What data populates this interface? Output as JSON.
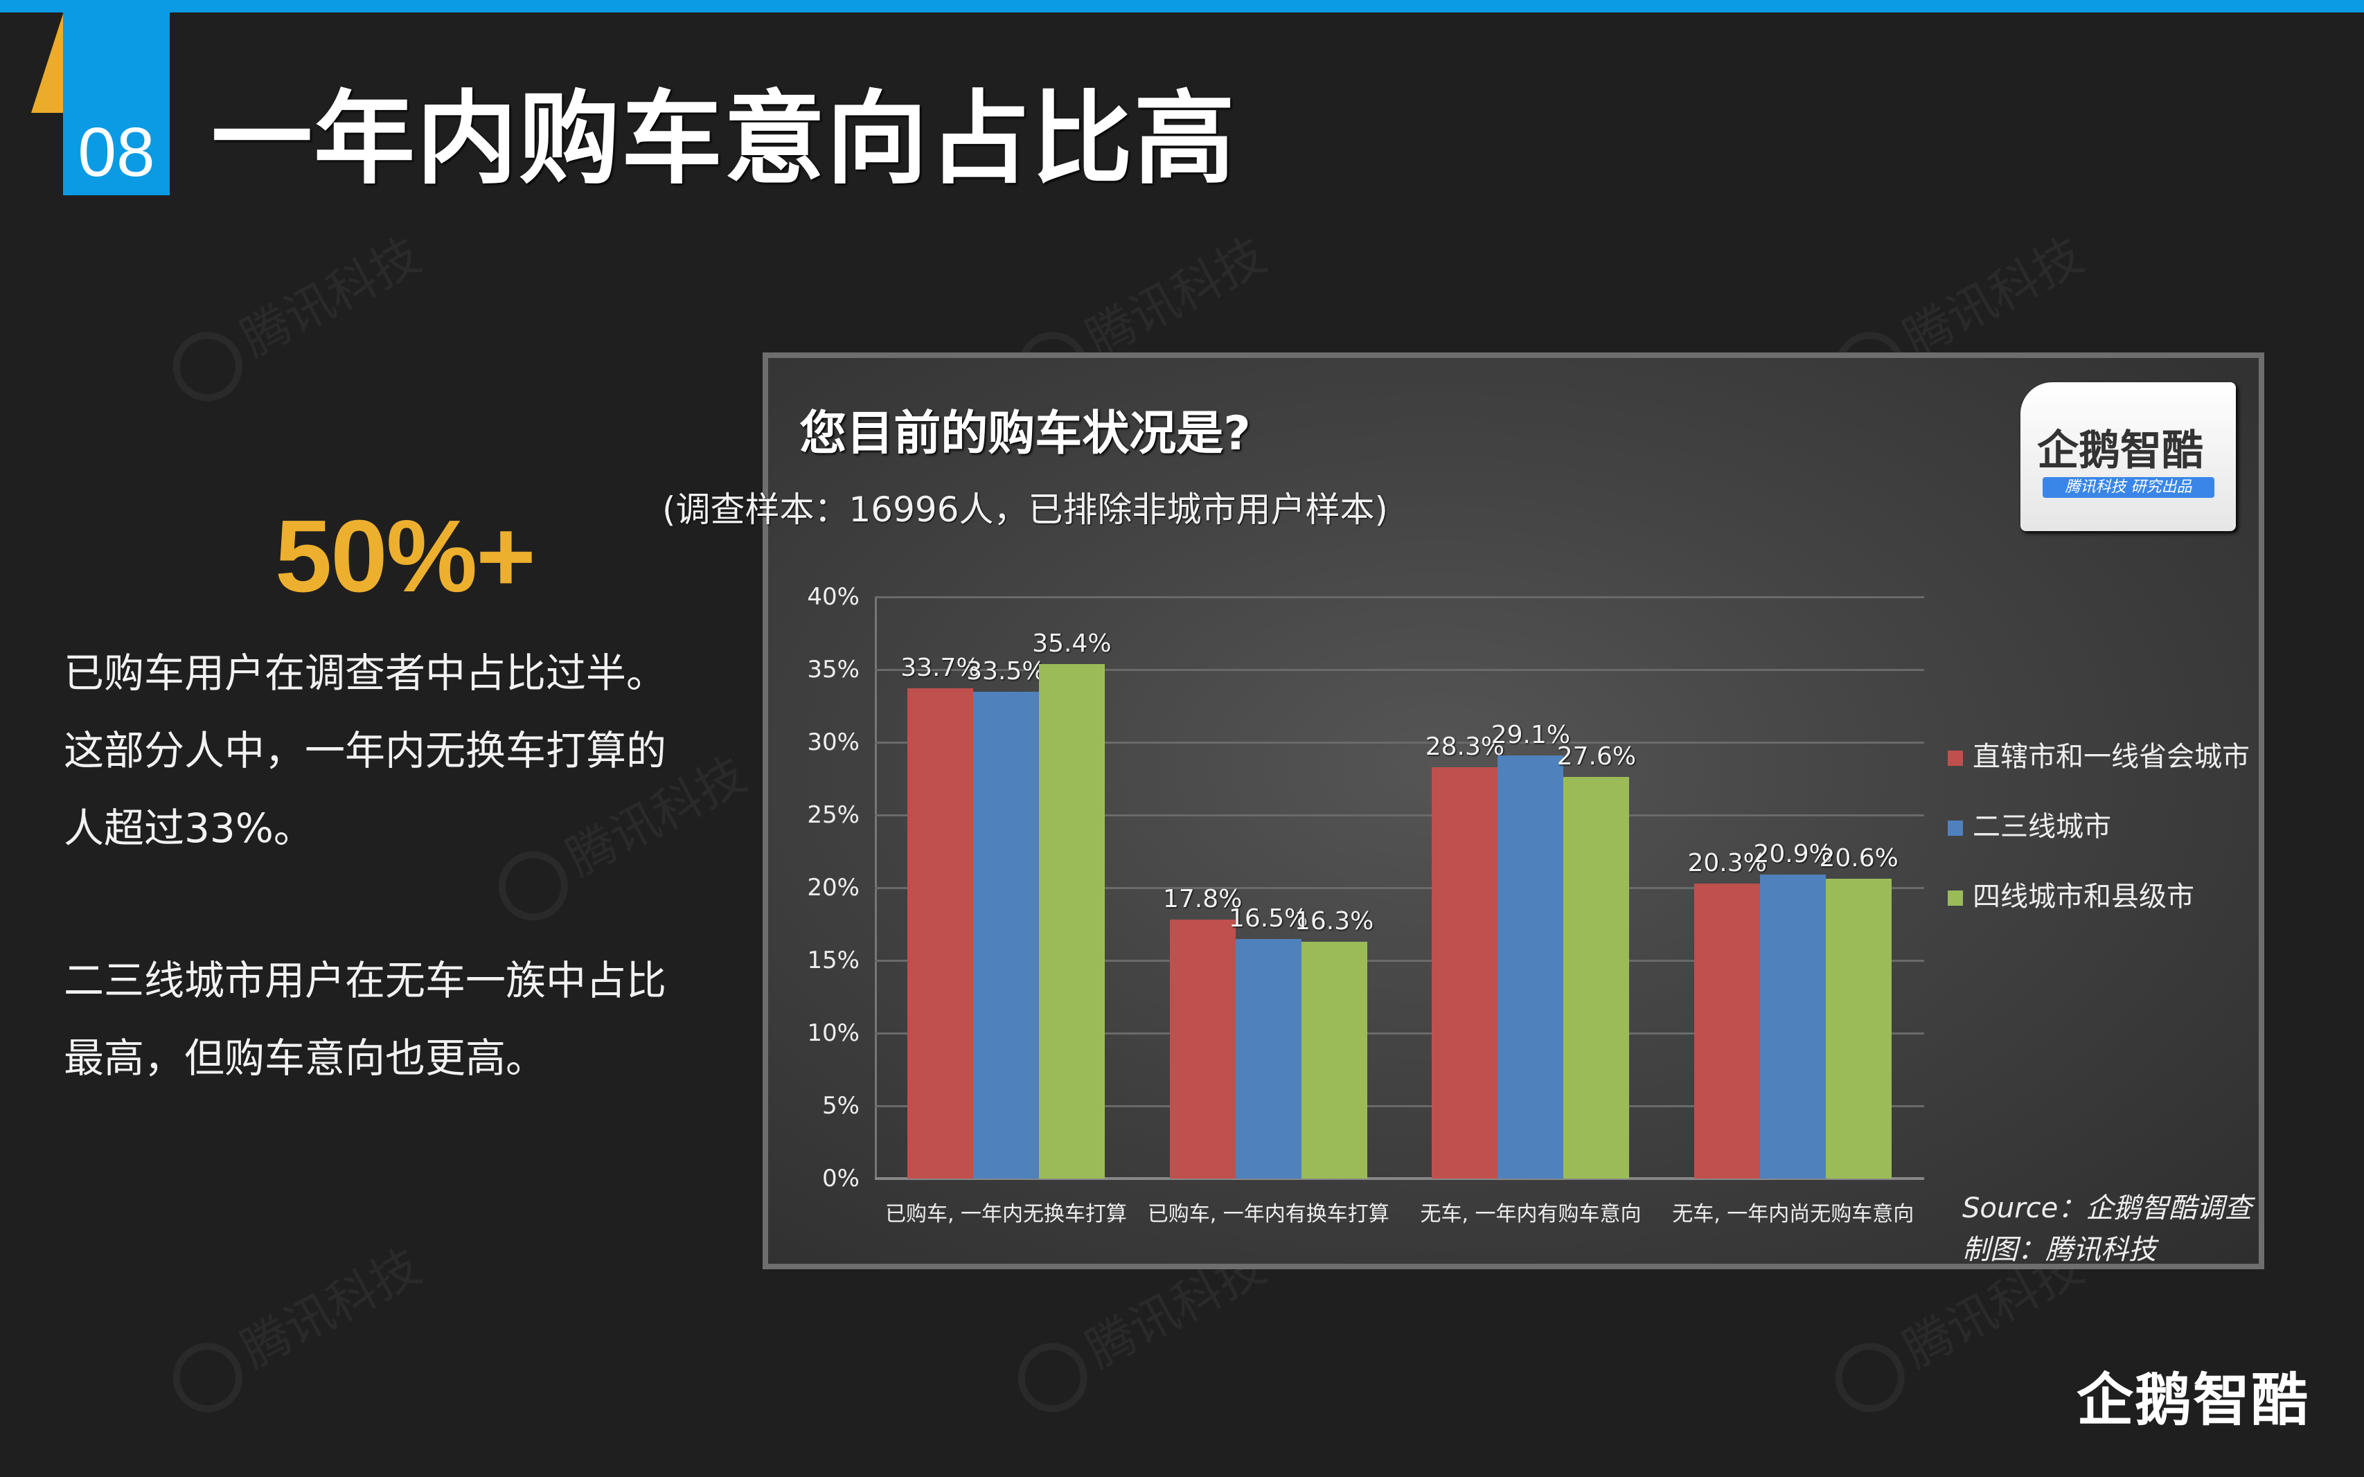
{
  "header": {
    "section_number": "08",
    "title": "一年内购车意向占比高"
  },
  "watermark": "腾讯科技",
  "left_panel": {
    "stat": "50%+",
    "paragraphs": [
      "已购车用户在调查者中占比过半。这部分人中，一年内无换车打算的人超过33%。",
      "二三线城市用户在无车一族中占比最高，但购车意向也更高。"
    ],
    "lines": [
      "已购车用户在调查者中占比过半。",
      "这部分人中，一年内无换车打算的",
      "人超过33%。",
      "二三线城市用户在无车一族中占比",
      "最高，但购车意向也更高。"
    ]
  },
  "chart_badge": {
    "name": "企鹅智酷",
    "tagline": "腾讯科技  研究出品"
  },
  "chart_source": {
    "source": "Source：企鹅智酷调查",
    "made_by": "制图：腾讯科技"
  },
  "footer_logo": "企鹅智酷",
  "colors": {
    "accent_blue": "#0b9be4",
    "accent_yellow": "#edb02e",
    "series_red": "#c0504d",
    "series_blue": "#4f81bd",
    "series_green": "#9bbb59"
  },
  "chart_data": {
    "type": "bar",
    "title": "您目前的购车状况是?",
    "subtitle": "(调查样本：16996人，已排除非城市用户样本)",
    "xlabel": "",
    "ylabel": "",
    "ylim": [
      0,
      40
    ],
    "yticks": [
      "0%",
      "5%",
      "10%",
      "15%",
      "20%",
      "25%",
      "30%",
      "35%",
      "40%"
    ],
    "grid": true,
    "legend_position": "right",
    "categories": [
      "已购车, 一年内无换车打算",
      "已购车, 一年内有换车打算",
      "无车, 一年内有购车意向",
      "无车, 一年内尚无购车意向"
    ],
    "series": [
      {
        "name": "直辖市和一线省会城市",
        "color": "#c0504d",
        "values": [
          33.7,
          17.8,
          28.3,
          20.3
        ],
        "labels": [
          "33.7%",
          "17.8%",
          "28.3%",
          "20.3%"
        ]
      },
      {
        "name": "二三线城市",
        "color": "#4f81bd",
        "values": [
          33.5,
          16.5,
          29.1,
          20.9
        ],
        "labels": [
          "33.5%",
          "16.5%",
          "29.1%",
          "20.9%"
        ]
      },
      {
        "name": "四线城市和县级市",
        "color": "#9bbb59",
        "values": [
          35.4,
          16.3,
          27.6,
          20.6
        ],
        "labels": [
          "35.4%",
          "16.3%",
          "27.6%",
          "20.6%"
        ]
      }
    ]
  }
}
